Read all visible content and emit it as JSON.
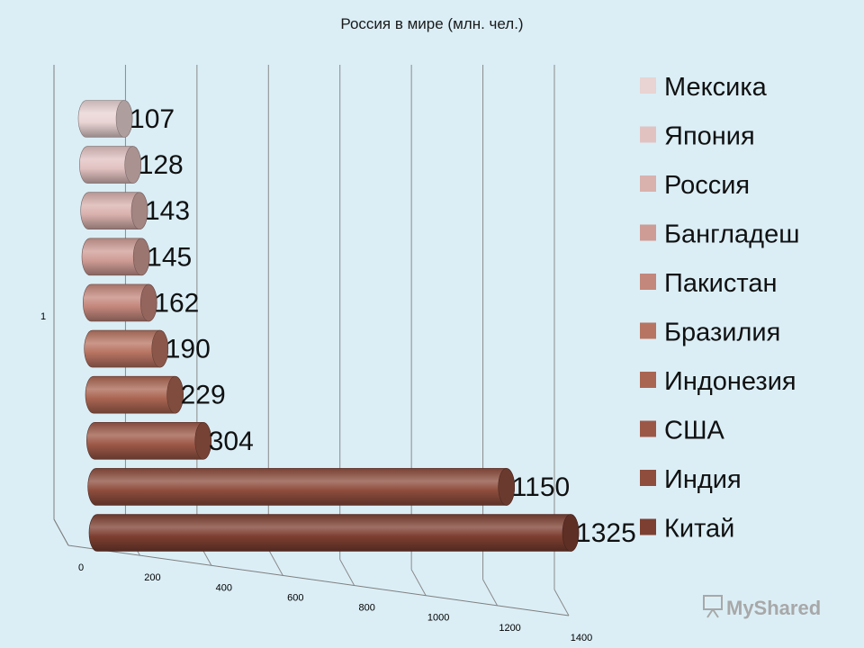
{
  "chart_data": {
    "type": "bar",
    "orientation": "horizontal",
    "style": "3d-cylinder",
    "title": "Россия в мире (млн. чел.)",
    "category_axis_label": "1",
    "series": [
      {
        "name": "Мексика",
        "value": 107,
        "color": "#e9d3d3",
        "label_color": "#111111"
      },
      {
        "name": "Япония",
        "value": 128,
        "color": "#e2c2c1",
        "label_color": "#111111"
      },
      {
        "name": "Россия",
        "value": 143,
        "color": "#d9b1ad",
        "label_color": "#c00000"
      },
      {
        "name": "Бангладеш",
        "value": 145,
        "color": "#cf9c95",
        "label_color": "#111111"
      },
      {
        "name": "Пакистан",
        "value": 162,
        "color": "#c4877c",
        "label_color": "#111111"
      },
      {
        "name": "Бразилия",
        "value": 190,
        "color": "#b87462",
        "label_color": "#111111"
      },
      {
        "name": "Индонезия",
        "value": 229,
        "color": "#aa6552",
        "label_color": "#111111"
      },
      {
        "name": "США",
        "value": 304,
        "color": "#9c5847",
        "label_color": "#111111"
      },
      {
        "name": "Индия",
        "value": 1150,
        "color": "#8e4d3d",
        "label_color": "#111111"
      },
      {
        "name": "Китай",
        "value": 1325,
        "color": "#7d3f31",
        "label_color": "#111111"
      }
    ],
    "xlim": [
      0,
      1400
    ],
    "x_ticks": [
      "0",
      "200",
      "400",
      "600",
      "800",
      "1000",
      "1200",
      "1400"
    ],
    "grid": true,
    "legend_position": "right"
  },
  "watermark": "MyShared",
  "background_color": "#dbeef6"
}
